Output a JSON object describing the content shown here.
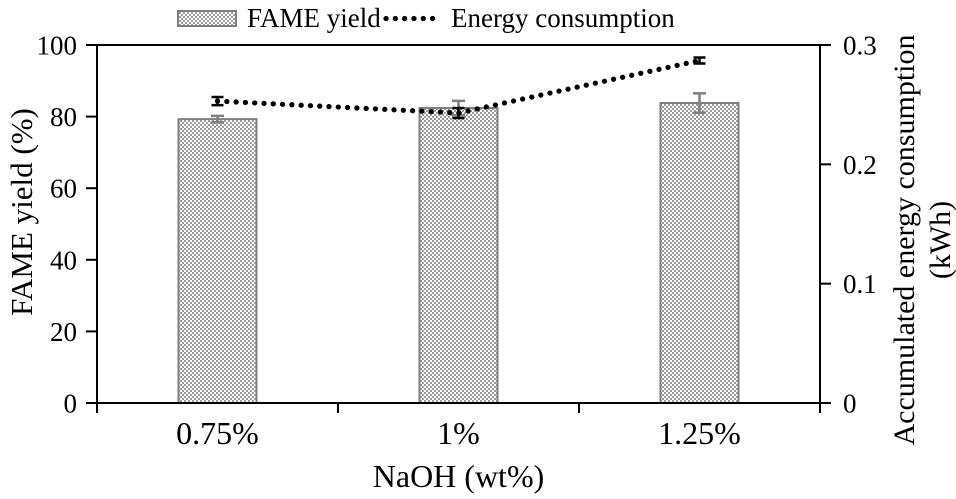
{
  "chart_data": {
    "type": "bar",
    "title": "",
    "categories": [
      "0.75%",
      "1%",
      "1.25%"
    ],
    "xlabel": "NaOH (wt%)",
    "ylabel_left": "FAME yield (%)",
    "ylabel_right_line1": "Accumulated energy consumption",
    "ylabel_right_line2": "(kWh)",
    "axes": {
      "left": {
        "range": [
          0,
          100
        ],
        "tick_values": [
          0,
          20,
          40,
          60,
          80,
          100
        ],
        "tick_labels": [
          "0",
          "20",
          "40",
          "60",
          "80",
          "100"
        ]
      },
      "right": {
        "range": [
          0,
          0.3
        ],
        "tick_values": [
          0,
          0.1,
          0.2,
          0.3
        ],
        "tick_labels": [
          "0",
          "0.1",
          "0.2",
          "0.3"
        ]
      }
    },
    "series": [
      {
        "name": "FAME yield",
        "type": "bar",
        "axis": "left",
        "values": [
          79.3,
          82.4,
          83.8
        ],
        "errors": [
          0.9,
          2.0,
          2.7
        ]
      },
      {
        "name": "Energy consumption",
        "type": "dotted-line",
        "axis": "right",
        "values": [
          0.253,
          0.243,
          0.287
        ],
        "errors": [
          0.0034,
          0.0042,
          0.0025
        ]
      }
    ],
    "grid": false,
    "legend_position": "top-center"
  },
  "colors": {
    "background": "#ffffff",
    "axis": "#000000",
    "text": "#000000",
    "bar_fill_base": "#ffffff",
    "bar_hatch": "#9c9c9c",
    "bar_border": "#7f7f7f",
    "bar_error": "#7f7f7f",
    "line": "#000000",
    "line_error": "#000000"
  }
}
